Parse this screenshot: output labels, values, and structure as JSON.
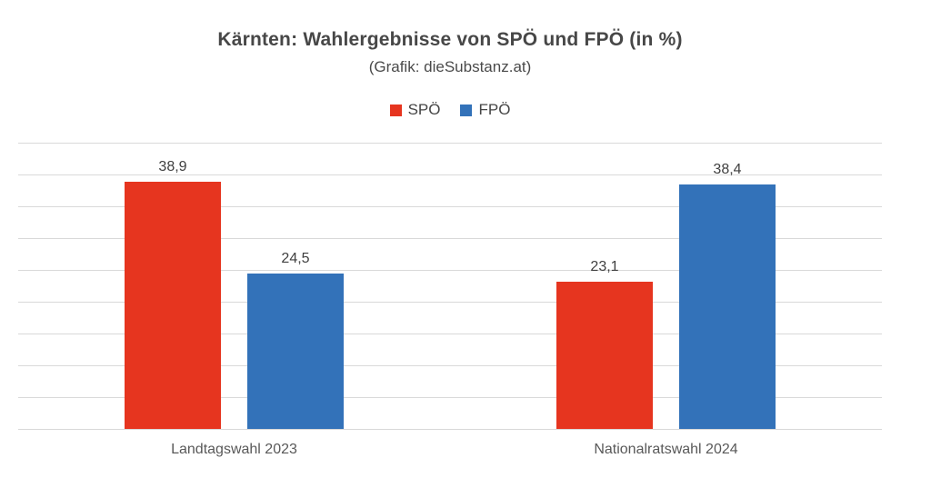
{
  "chart_data": {
    "type": "bar",
    "title": "Kärnten: Wahlergebnisse von SPÖ und FPÖ (in %)",
    "subtitle": "(Grafik: dieSubstanz.at)",
    "categories": [
      "Landtagswahl 2023",
      "Nationalratswahl 2024"
    ],
    "series": [
      {
        "name": "SPÖ",
        "color": "#e6351f",
        "values": [
          38.9,
          23.1
        ],
        "value_labels": [
          "38,9",
          "23,1"
        ]
      },
      {
        "name": "FPÖ",
        "color": "#3372b9",
        "values": [
          24.5,
          38.4
        ],
        "value_labels": [
          "24,5",
          "38,4"
        ]
      }
    ],
    "xlabel": "",
    "ylabel": "",
    "ylim": [
      0,
      45
    ],
    "grid_step": 5,
    "grid": true,
    "gridline_color": "#d9d9d9",
    "legend_position": "top",
    "y_axis_labels_visible": false
  }
}
